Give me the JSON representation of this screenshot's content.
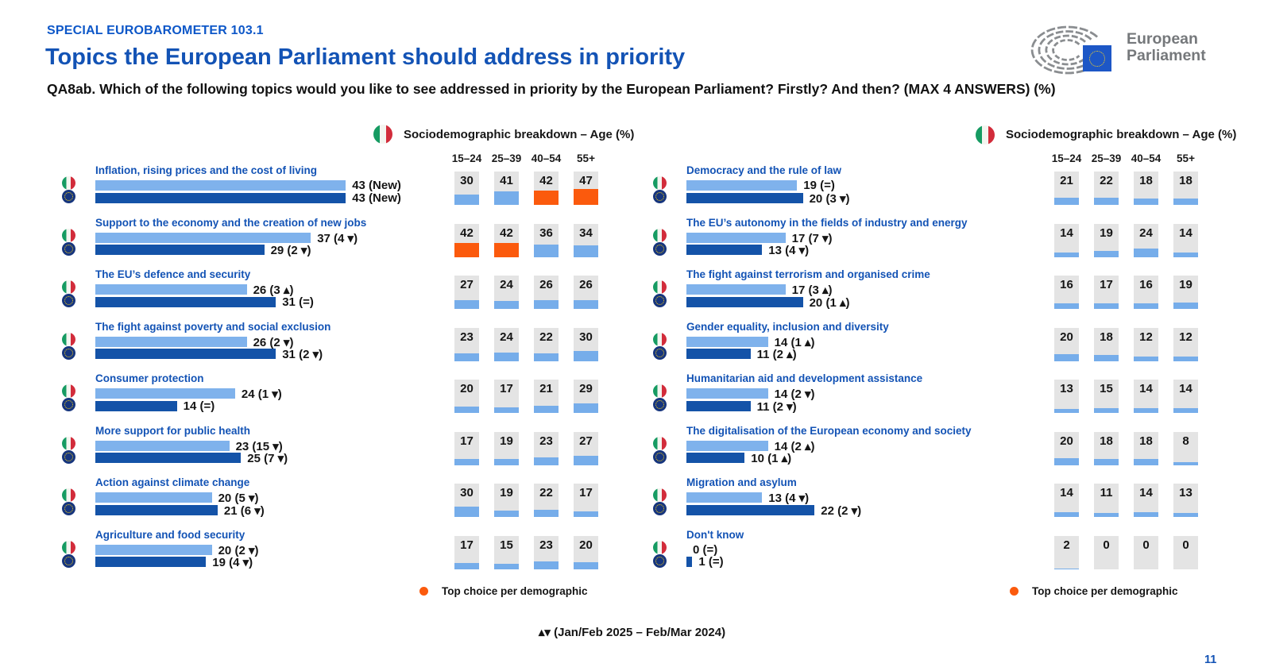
{
  "page": {
    "eyebrow": "SPECIAL EUROBAROMETER 103.1",
    "title": "Topics the European Parliament should address in priority",
    "question": "QA8ab. Which of the following topics would you like to see addressed in priority by the European Parliament? Firstly? And then? (MAX 4 ANSWERS) (%)",
    "change_note": "▴▾ (Jan/Feb 2025 – Feb/Mar 2024)",
    "page_number": "11"
  },
  "logo": {
    "line1": "European",
    "line2": "Parliament"
  },
  "age_breakdown": {
    "title": "Sociodemographic breakdown – Age (%)",
    "columns": [
      "15–24",
      "25–39",
      "40–54",
      "55+"
    ],
    "legend": "Top choice per demographic"
  },
  "colors": {
    "italy_bar": "#7FB2EC",
    "eu_bar": "#1453A8",
    "top_choice_orange": "#FB5A0D",
    "cell_background": "#E4E4E4",
    "cell_fill_blue": "#76ADEA",
    "title_blue": "#1353B5",
    "eyebrow_blue": "#0D57C8",
    "logo_gray": "#75787B",
    "eu_flag_blue": "#1D57C6",
    "star_yellow": "#FFD51F",
    "italy_green": "#169B62",
    "italy_red": "#D22C3B"
  },
  "chart_data": {
    "type": "bar",
    "unit": "%",
    "series": [
      "Italy",
      "EU27"
    ],
    "age_groups": [
      "15–24",
      "25–39",
      "40–54",
      "55+"
    ],
    "xlim": [
      0,
      50
    ],
    "legend_position": "bottom",
    "left_topics": [
      {
        "label": "Inflation, rising prices and the cost of living",
        "italy": 43,
        "italy_label": "43 (New)",
        "eu": 43,
        "eu_label": "43 (New)",
        "ages": [
          30,
          41,
          42,
          47
        ],
        "top_choice": [
          false,
          false,
          true,
          true
        ]
      },
      {
        "label": "Support to the economy and the creation of new jobs",
        "italy": 37,
        "italy_label": "37 (4 ▾)",
        "eu": 29,
        "eu_label": "29 (2 ▾)",
        "ages": [
          42,
          42,
          36,
          34
        ],
        "top_choice": [
          true,
          true,
          false,
          false
        ]
      },
      {
        "label": "The EU’s defence and security",
        "italy": 26,
        "italy_label": "26 (3 ▴)",
        "eu": 31,
        "eu_label": "31 (=)",
        "ages": [
          27,
          24,
          26,
          26
        ],
        "top_choice": [
          false,
          false,
          false,
          false
        ]
      },
      {
        "label": "The fight against poverty and social exclusion",
        "italy": 26,
        "italy_label": "26 (2 ▾)",
        "eu": 31,
        "eu_label": "31 (2 ▾)",
        "ages": [
          23,
          24,
          22,
          30
        ],
        "top_choice": [
          false,
          false,
          false,
          false
        ]
      },
      {
        "label": "Consumer protection",
        "italy": 24,
        "italy_label": "24 (1 ▾)",
        "eu": 14,
        "eu_label": "14 (=)",
        "ages": [
          20,
          17,
          21,
          29
        ],
        "top_choice": [
          false,
          false,
          false,
          false
        ]
      },
      {
        "label": "More support for public health",
        "italy": 23,
        "italy_label": "23 (15 ▾)",
        "eu": 25,
        "eu_label": "25 (7 ▾)",
        "ages": [
          17,
          19,
          23,
          27
        ],
        "top_choice": [
          false,
          false,
          false,
          false
        ]
      },
      {
        "label": "Action against climate change",
        "italy": 20,
        "italy_label": "20 (5 ▾)",
        "eu": 21,
        "eu_label": "21 (6 ▾)",
        "ages": [
          30,
          19,
          22,
          17
        ],
        "top_choice": [
          false,
          false,
          false,
          false
        ]
      },
      {
        "label": "Agriculture and food security",
        "italy": 20,
        "italy_label": "20 (2 ▾)",
        "eu": 19,
        "eu_label": "19 (4 ▾)",
        "ages": [
          17,
          15,
          23,
          20
        ],
        "top_choice": [
          false,
          false,
          false,
          false
        ]
      }
    ],
    "right_topics": [
      {
        "label": "Democracy and the rule of law",
        "italy": 19,
        "italy_label": "19 (=)",
        "eu": 20,
        "eu_label": "20 (3 ▾)",
        "ages": [
          21,
          22,
          18,
          18
        ],
        "top_choice": [
          false,
          false,
          false,
          false
        ]
      },
      {
        "label": "The EU’s autonomy in the fields of industry and energy",
        "italy": 17,
        "italy_label": "17 (7 ▾)",
        "eu": 13,
        "eu_label": "13 (4 ▾)",
        "ages": [
          14,
          19,
          24,
          14
        ],
        "top_choice": [
          false,
          false,
          false,
          false
        ]
      },
      {
        "label": "The fight against terrorism and organised crime",
        "italy": 17,
        "italy_label": "17 (3 ▴)",
        "eu": 20,
        "eu_label": "20 (1 ▴)",
        "ages": [
          16,
          17,
          16,
          19
        ],
        "top_choice": [
          false,
          false,
          false,
          false
        ]
      },
      {
        "label": "Gender equality, inclusion and diversity",
        "italy": 14,
        "italy_label": "14 (1 ▴)",
        "eu": 11,
        "eu_label": "11 (2 ▴)",
        "ages": [
          20,
          18,
          12,
          12
        ],
        "top_choice": [
          false,
          false,
          false,
          false
        ]
      },
      {
        "label": "Humanitarian aid and development assistance",
        "italy": 14,
        "italy_label": "14 (2 ▾)",
        "eu": 11,
        "eu_label": "11 (2 ▾)",
        "ages": [
          13,
          15,
          14,
          14
        ],
        "top_choice": [
          false,
          false,
          false,
          false
        ]
      },
      {
        "label": "The digitalisation of the European economy and society",
        "italy": 14,
        "italy_label": "14 (2 ▴)",
        "eu": 10,
        "eu_label": "10 (1 ▴)",
        "ages": [
          20,
          18,
          18,
          8
        ],
        "top_choice": [
          false,
          false,
          false,
          false
        ]
      },
      {
        "label": "Migration and asylum",
        "italy": 13,
        "italy_label": "13 (4 ▾)",
        "eu": 22,
        "eu_label": "22 (2 ▾)",
        "ages": [
          14,
          11,
          14,
          13
        ],
        "top_choice": [
          false,
          false,
          false,
          false
        ]
      },
      {
        "label": "Don't know",
        "italy": 0,
        "italy_label": "0 (=)",
        "eu": 1,
        "eu_label": "1 (=)",
        "ages": [
          2,
          0,
          0,
          0
        ],
        "top_choice": [
          false,
          false,
          false,
          false
        ]
      }
    ]
  }
}
